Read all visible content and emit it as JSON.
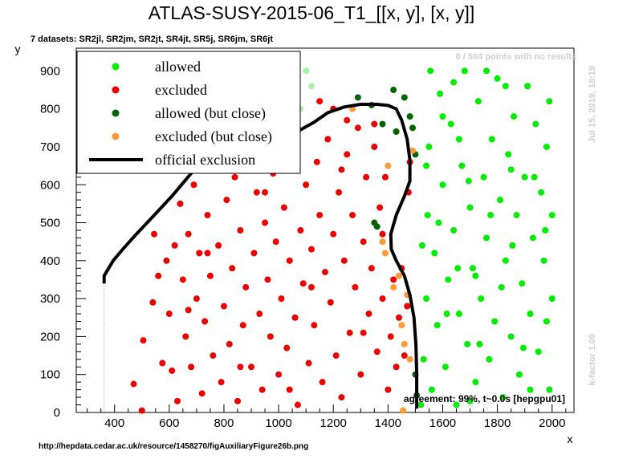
{
  "title": "ATLAS-SUSY-2015-06_T1_[[x, y], [x, y]]",
  "datasets_note": "7 datasets: SR2jl, SR2jm, SR2jt, SR4jt, SR5j, SR6jm, SR6jt",
  "no_results_note": "0 / 564 points with no results",
  "timestamp": "Jul 15, 2019, 18:19",
  "kfactor": "k-factor 1.00",
  "agreement": "agreement: 99%, t~0.0s [hepgpu01]",
  "source_url": "http://hepdata.cedar.ac.uk/resource/1458270/figAuxiliaryFigure26b.png",
  "colors": {
    "allowed": "#00ee00",
    "excluded": "#ee0000",
    "allowed_close": "#006400",
    "excluded_close": "#ff9933",
    "official": "#000000"
  },
  "chart_data": {
    "type": "scatter",
    "title": "ATLAS-SUSY-2015-06_T1_[[x, y], [x, y]]",
    "xlabel": "x",
    "ylabel": "y",
    "xlim": [
      260,
      2080
    ],
    "ylim": [
      0,
      960
    ],
    "xticks": [
      400,
      600,
      800,
      1000,
      1200,
      1400,
      1600,
      1800,
      2000
    ],
    "yticks": [
      0,
      100,
      200,
      300,
      400,
      500,
      600,
      700,
      800,
      900
    ],
    "legend_position": "top-left",
    "legend": [
      {
        "label": "allowed",
        "kind": "marker",
        "color": "#00ee00"
      },
      {
        "label": "excluded",
        "kind": "marker",
        "color": "#ee0000"
      },
      {
        "label": "allowed (but close)",
        "kind": "marker",
        "color": "#006400"
      },
      {
        "label": "excluded (but close)",
        "kind": "marker",
        "color": "#ff9933"
      },
      {
        "label": "official exclusion",
        "kind": "line",
        "color": "#000000"
      }
    ],
    "official_exclusion": [
      [
        362,
        340
      ],
      [
        362,
        360
      ],
      [
        395,
        400
      ],
      [
        430,
        430
      ],
      [
        480,
        470
      ],
      [
        545,
        520
      ],
      [
        610,
        570
      ],
      [
        680,
        630
      ],
      [
        740,
        680
      ],
      [
        790,
        710
      ],
      [
        840,
        718
      ],
      [
        900,
        713
      ],
      [
        960,
        722
      ],
      [
        1030,
        733
      ],
      [
        1080,
        745
      ],
      [
        1130,
        765
      ],
      [
        1180,
        790
      ],
      [
        1240,
        805
      ],
      [
        1300,
        812
      ],
      [
        1360,
        812
      ],
      [
        1400,
        809
      ],
      [
        1430,
        800
      ],
      [
        1450,
        770
      ],
      [
        1470,
        720
      ],
      [
        1480,
        665
      ],
      [
        1480,
        610
      ],
      [
        1460,
        570
      ],
      [
        1430,
        520
      ],
      [
        1410,
        470
      ],
      [
        1412,
        430
      ],
      [
        1430,
        400
      ],
      [
        1460,
        360
      ],
      [
        1480,
        310
      ],
      [
        1495,
        250
      ],
      [
        1502,
        180
      ],
      [
        1505,
        100
      ],
      [
        1505,
        10
      ]
    ],
    "series": [
      {
        "name": "excluded",
        "points": [
          [
            470,
            75
          ],
          [
            500,
            5
          ],
          [
            505,
            190
          ],
          [
            540,
            290
          ],
          [
            545,
            470
          ],
          [
            575,
            130
          ],
          [
            590,
            400
          ],
          [
            600,
            260
          ],
          [
            610,
            110
          ],
          [
            630,
            30
          ],
          [
            640,
            550
          ],
          [
            650,
            350
          ],
          [
            660,
            200
          ],
          [
            670,
            470
          ],
          [
            680,
            120
          ],
          [
            690,
            600
          ],
          [
            700,
            300
          ],
          [
            710,
            420
          ],
          [
            720,
            50
          ],
          [
            730,
            240
          ],
          [
            740,
            520
          ],
          [
            750,
            360
          ],
          [
            760,
            150
          ],
          [
            770,
            650
          ],
          [
            780,
            440
          ],
          [
            790,
            80
          ],
          [
            800,
            280
          ],
          [
            810,
            560
          ],
          [
            820,
            180
          ],
          [
            830,
            380
          ],
          [
            840,
            620
          ],
          [
            850,
            30
          ],
          [
            860,
            480
          ],
          [
            870,
            230
          ],
          [
            880,
            330
          ],
          [
            890,
            680
          ],
          [
            900,
            120
          ],
          [
            910,
            420
          ],
          [
            920,
            580
          ],
          [
            930,
            260
          ],
          [
            940,
            60
          ],
          [
            950,
            500
          ],
          [
            960,
            350
          ],
          [
            970,
            200
          ],
          [
            980,
            630
          ],
          [
            990,
            450
          ],
          [
            1000,
            100
          ],
          [
            1010,
            300
          ],
          [
            1020,
            540
          ],
          [
            1030,
            170
          ],
          [
            1040,
            400
          ],
          [
            1050,
            700
          ],
          [
            1060,
            250
          ],
          [
            1070,
            20
          ],
          [
            1080,
            480
          ],
          [
            1090,
            340
          ],
          [
            1100,
            600
          ],
          [
            1110,
            130
          ],
          [
            1120,
            430
          ],
          [
            1130,
            230
          ],
          [
            1140,
            660
          ],
          [
            1150,
            520
          ],
          [
            1160,
            80
          ],
          [
            1170,
            370
          ],
          [
            1180,
            720
          ],
          [
            1190,
            290
          ],
          [
            1200,
            470
          ],
          [
            1210,
            150
          ],
          [
            1220,
            580
          ],
          [
            1230,
            40
          ],
          [
            1240,
            400
          ],
          [
            1250,
            680
          ],
          [
            1260,
            210
          ],
          [
            1270,
            520
          ],
          [
            1280,
            330
          ],
          [
            1290,
            750
          ],
          [
            1300,
            100
          ],
          [
            1310,
            450
          ],
          [
            1320,
            620
          ],
          [
            1330,
            260
          ],
          [
            1340,
            380
          ],
          [
            1350,
            700
          ],
          [
            1360,
            160
          ],
          [
            1370,
            540
          ],
          [
            1380,
            300
          ],
          [
            1390,
            620
          ],
          [
            1400,
            60
          ],
          [
            1410,
            200
          ],
          [
            1420,
            350
          ],
          [
            1430,
            120
          ],
          [
            1440,
            250
          ],
          [
            1450,
            380
          ],
          [
            1460,
            150
          ],
          [
            1470,
            280
          ],
          [
            1480,
            660
          ],
          [
            1475,
            580
          ],
          [
            1200,
            800
          ],
          [
            1350,
            760
          ],
          [
            1430,
            740
          ],
          [
            560,
            360
          ],
          [
            620,
            440
          ],
          [
            670,
            270
          ],
          [
            740,
            420
          ],
          [
            860,
            120
          ],
          [
            950,
            580
          ],
          [
            1040,
            60
          ],
          [
            1120,
            330
          ],
          [
            1230,
            640
          ],
          [
            1310,
            210
          ],
          [
            1380,
            470
          ],
          [
            900,
            760
          ],
          [
            1020,
            790
          ],
          [
            1150,
            820
          ],
          [
            1250,
            770
          ]
        ]
      },
      {
        "name": "allowed",
        "points": [
          [
            1520,
            20
          ],
          [
            1530,
            140
          ],
          [
            1540,
            300
          ],
          [
            1545,
            520
          ],
          [
            1550,
            700
          ],
          [
            1560,
            60
          ],
          [
            1570,
            420
          ],
          [
            1580,
            230
          ],
          [
            1590,
            840
          ],
          [
            1600,
            600
          ],
          [
            1610,
            120
          ],
          [
            1620,
            350
          ],
          [
            1630,
            760
          ],
          [
            1640,
            480
          ],
          [
            1650,
            20
          ],
          [
            1660,
            260
          ],
          [
            1670,
            650
          ],
          [
            1680,
            900
          ],
          [
            1690,
            180
          ],
          [
            1700,
            540
          ],
          [
            1710,
            380
          ],
          [
            1720,
            80
          ],
          [
            1730,
            820
          ],
          [
            1740,
            300
          ],
          [
            1750,
            620
          ],
          [
            1760,
            460
          ],
          [
            1770,
            140
          ],
          [
            1780,
            720
          ],
          [
            1790,
            240
          ],
          [
            1800,
            880
          ],
          [
            1810,
            560
          ],
          [
            1820,
            40
          ],
          [
            1830,
            400
          ],
          [
            1840,
            680
          ],
          [
            1850,
            200
          ],
          [
            1860,
            780
          ],
          [
            1870,
            520
          ],
          [
            1880,
            100
          ],
          [
            1890,
            340
          ],
          [
            1900,
            620
          ],
          [
            1910,
            860
          ],
          [
            1920,
            260
          ],
          [
            1930,
            460
          ],
          [
            1940,
            760
          ],
          [
            1950,
            160
          ],
          [
            1960,
            580
          ],
          [
            1970,
            400
          ],
          [
            1980,
            700
          ],
          [
            1990,
            60
          ],
          [
            2000,
            300
          ],
          [
            2000,
            520
          ],
          [
            1990,
            820
          ],
          [
            1555,
            900
          ],
          [
            1600,
            780
          ],
          [
            1640,
            870
          ],
          [
            1700,
            30
          ],
          [
            1760,
            900
          ],
          [
            1830,
            860
          ],
          [
            1920,
            60
          ],
          [
            1980,
            240
          ],
          [
            1525,
            440
          ],
          [
            1585,
            500
          ],
          [
            1615,
            260
          ],
          [
            1655,
            380
          ],
          [
            1695,
            610
          ],
          [
            1735,
            180
          ],
          [
            1775,
            520
          ],
          [
            1815,
            330
          ],
          [
            1855,
            440
          ],
          [
            1895,
            170
          ],
          [
            1935,
            620
          ],
          [
            1975,
            480
          ],
          [
            1540,
            650
          ],
          [
            1660,
            720
          ],
          [
            1720,
            360
          ],
          [
            1850,
            640
          ]
        ]
      },
      {
        "name": "allowed (faint)",
        "points": [
          [
            780,
            790
          ],
          [
            830,
            820
          ],
          [
            870,
            760
          ],
          [
            900,
            800
          ],
          [
            950,
            840
          ],
          [
            980,
            780
          ],
          [
            1000,
            880
          ],
          [
            1040,
            860
          ],
          [
            1060,
            820
          ],
          [
            1100,
            900
          ],
          [
            1120,
            860
          ],
          [
            1080,
            800
          ],
          [
            960,
            870
          ],
          [
            1010,
            800
          ],
          [
            850,
            870
          ]
        ]
      },
      {
        "name": "allowed (but close)",
        "points": [
          [
            1290,
            830
          ],
          [
            1350,
            500
          ],
          [
            1380,
            760
          ],
          [
            1420,
            850
          ],
          [
            1430,
            740
          ],
          [
            1480,
            780
          ],
          [
            1490,
            750
          ],
          [
            1500,
            680
          ],
          [
            1340,
            810
          ],
          [
            1460,
            830
          ],
          [
            1500,
            100
          ],
          [
            1505,
            45
          ],
          [
            1360,
            490
          ]
        ]
      },
      {
        "name": "excluded (but close)",
        "points": [
          [
            1270,
            800
          ],
          [
            1380,
            450
          ],
          [
            1390,
            420
          ],
          [
            1420,
            330
          ],
          [
            1440,
            360
          ],
          [
            1450,
            230
          ],
          [
            1460,
            180
          ],
          [
            1470,
            310
          ],
          [
            1480,
            140
          ],
          [
            1490,
            690
          ],
          [
            1455,
            5
          ],
          [
            1400,
            650
          ]
        ]
      }
    ]
  }
}
